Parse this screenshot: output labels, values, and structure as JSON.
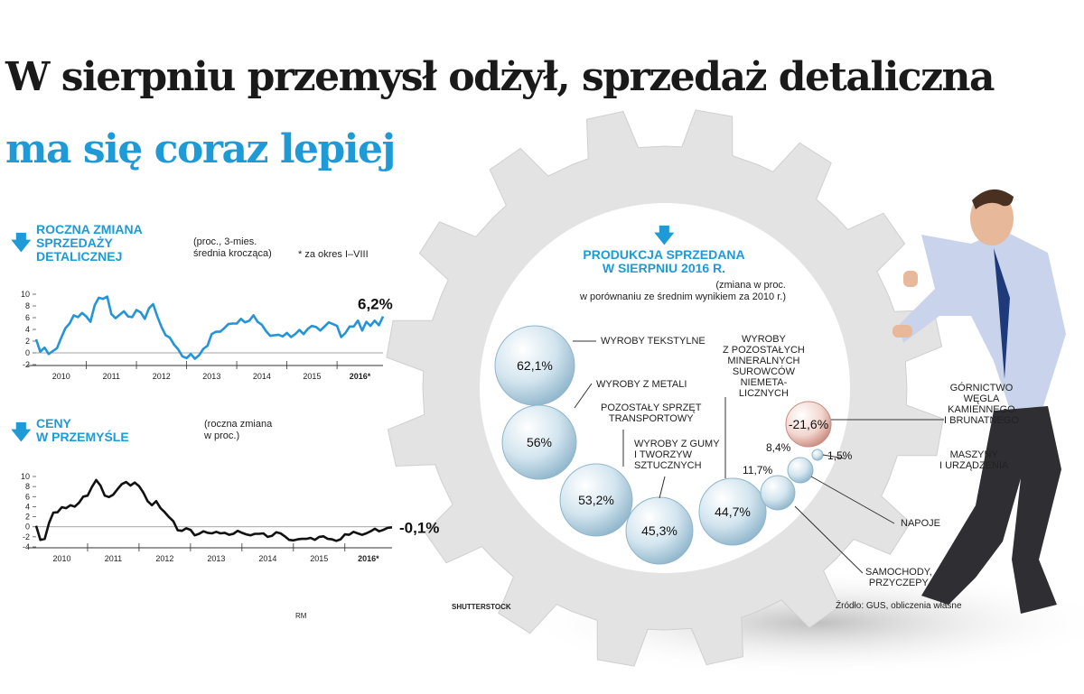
{
  "title_line1": "W sierpniu przemysł odżył, sprzedaż detaliczna",
  "title_line2": "ma się coraz lepiej",
  "chart1": {
    "title_lines": [
      "ROCZNA ZMIANA",
      "SPRZEDAŻY",
      "DETALICZNEJ"
    ],
    "note_lines": [
      "(proc., 3-mies.",
      "średnia krocząca)"
    ],
    "footnote": "* za okres I–VIII",
    "last_value_label": "6,2%"
  },
  "chart2": {
    "title_lines": [
      "CENY",
      "W PRZEMYŚLE"
    ],
    "note_lines": [
      "(roczna zmiana",
      "w proc.)"
    ],
    "last_value_label": "-0,1%"
  },
  "credit_rm": "RM",
  "credit_photo": "SHUTTERSTOCK",
  "source": "Źródło: GUS, obliczenia własne",
  "production": {
    "title_lines": [
      "PRODUKCJA SPRZEDANA",
      "W SIERPNIU 2016 R."
    ],
    "note_lines": [
      "(zmiana w proc.",
      "w porównaniu ze średnim wynikiem za 2010 r.)"
    ]
  },
  "chart_data": [
    {
      "type": "line",
      "title": "Roczna zmiana sprzedaży detalicznej",
      "subtitle": "(proc., 3-mies. średnia krocząca)",
      "x_tick_labels": [
        "2010",
        "2011",
        "2012",
        "2013",
        "2014",
        "2015",
        "2016*"
      ],
      "ylim": [
        -2,
        10
      ],
      "y_ticks": [
        10,
        8,
        6,
        4,
        2,
        0,
        -2
      ],
      "series": [
        {
          "values": [
            2.3,
            0.2,
            0.9,
            -0.2,
            0.3,
            0.8,
            2.6,
            4.2,
            5.0,
            6.4,
            6.1,
            6.8,
            6.2,
            5.3,
            8.1,
            9.4,
            9.2,
            9.6,
            6.6,
            5.9,
            6.5,
            7.1,
            6.2,
            6.1,
            7.3,
            6.9,
            5.8,
            7.6,
            8.3,
            6.2,
            4.4,
            3.0,
            2.6,
            1.4,
            0.6,
            -0.6,
            -0.9,
            -0.2,
            -1.0,
            -0.4,
            0.7,
            1.2,
            3.2,
            3.6,
            3.6,
            4.2,
            4.9,
            5.0,
            5.0,
            5.8,
            5.2,
            5.5,
            6.4,
            5.3,
            4.8,
            3.7,
            2.9,
            3.0,
            3.1,
            2.8,
            3.4,
            2.7,
            3.2,
            3.9,
            3.2,
            4.1,
            4.6,
            4.4,
            3.8,
            4.5,
            5.2,
            4.9,
            4.6,
            2.7,
            3.4,
            4.5,
            4.5,
            5.5,
            3.8,
            5.3,
            4.6,
            5.5,
            4.7,
            6.2
          ]
        }
      ],
      "last_label": "6,2%",
      "footnote": "* za okres I–VIII"
    },
    {
      "type": "line",
      "title": "Ceny w przemyśle",
      "subtitle": "(roczna zmiana w proc.)",
      "x_tick_labels": [
        "2010",
        "2011",
        "2012",
        "2013",
        "2014",
        "2015",
        "2016*"
      ],
      "ylim": [
        -4,
        10
      ],
      "y_ticks": [
        10,
        8,
        6,
        4,
        2,
        0,
        -2,
        -4
      ],
      "series": [
        {
          "values": [
            0.2,
            -2.6,
            -2.4,
            0.7,
            2.8,
            2.9,
            3.9,
            3.7,
            4.3,
            4.0,
            4.8,
            6.0,
            6.2,
            7.9,
            9.3,
            8.2,
            6.2,
            5.9,
            6.4,
            7.5,
            8.5,
            8.9,
            8.2,
            8.8,
            8.1,
            6.8,
            5.1,
            4.3,
            5.1,
            3.7,
            2.9,
            1.9,
            1.1,
            -0.7,
            -0.8,
            -0.3,
            -0.6,
            -1.7,
            -1.4,
            -0.9,
            -1.2,
            -1.3,
            -1.0,
            -1.3,
            -1.2,
            -1.6,
            -1.4,
            -0.8,
            -1.2,
            -1.5,
            -1.7,
            -1.4,
            -1.4,
            -1.3,
            -2.0,
            -1.8,
            -1.1,
            -1.3,
            -1.9,
            -2.6,
            -2.7,
            -2.5,
            -2.4,
            -2.4,
            -2.2,
            -2.6,
            -2.0,
            -1.9,
            -2.4,
            -2.5,
            -2.8,
            -2.5,
            -1.5,
            -1.6,
            -1.0,
            -1.3,
            -1.6,
            -1.3,
            -0.9,
            -0.4,
            -0.9,
            -0.6,
            -0.2,
            -0.1
          ]
        }
      ],
      "last_label": "-0,1%"
    },
    {
      "type": "scatter",
      "title": "Produkcja sprzedana w sierpniu 2016 r.",
      "subtitle": "(zmiana w proc. w porównaniu ze średnim wynikiem za 2010 r.)",
      "points": [
        {
          "label": "WYROBY TEKSTYLNE",
          "value": 62.1,
          "text": "62,1%"
        },
        {
          "label": "WYROBY Z METALI",
          "value": 56.0,
          "text": "56%"
        },
        {
          "label": "POZOSTAŁY SPRZĘT TRANSPORTOWY",
          "value": 53.2,
          "text": "53,2%"
        },
        {
          "label": "WYROBY Z GUMY I TWORZYW SZTUCZNYCH",
          "value": 45.3,
          "text": "45,3%"
        },
        {
          "label": "WYROBY Z POZOSTAŁYCH MINERALNYCH SUROWCÓW NIEMETALICZNYCH",
          "value": 44.7,
          "text": "44,7%"
        },
        {
          "label": "SAMOCHODY, PRZYCZEPY",
          "value": 11.7,
          "text": "11,7%"
        },
        {
          "label": "NAPOJE",
          "value": 8.4,
          "text": "8,4%"
        },
        {
          "label": "MASZYNY I URZĄDZENIA",
          "value": 1.5,
          "text": "1,5%"
        },
        {
          "label": "GÓRNICTWO WĘGLA KAMIENNEGO I BRUNATNEGO",
          "value": -21.6,
          "text": "-21,6%"
        }
      ]
    }
  ],
  "bubble_labels": {
    "textile": "WYROBY TEKSTYLNE",
    "metal": "WYROBY Z METALI",
    "transport": [
      "POZOSTAŁY SPRZĘT",
      "TRANSPORTOWY"
    ],
    "rubber": [
      "WYROBY Z GUMY",
      "I TWORZYW",
      "SZTUCZNYCH"
    ],
    "minerals": [
      "WYROBY",
      "Z POZOSTAŁYCH",
      "MINERALNYCH",
      "SUROWCÓW",
      "NIEMETA-",
      "LICZNYCH"
    ],
    "mining": [
      "GÓRNICTWO",
      "WĘGLA",
      "KAMIENNEGO",
      "I BRUNATNEGO"
    ],
    "machines": [
      "MASZYNY",
      "I URZĄDZENIA"
    ],
    "drinks": "NAPOJE",
    "cars": [
      "SAMOCHODY,",
      "PRZYCZEPY"
    ]
  }
}
